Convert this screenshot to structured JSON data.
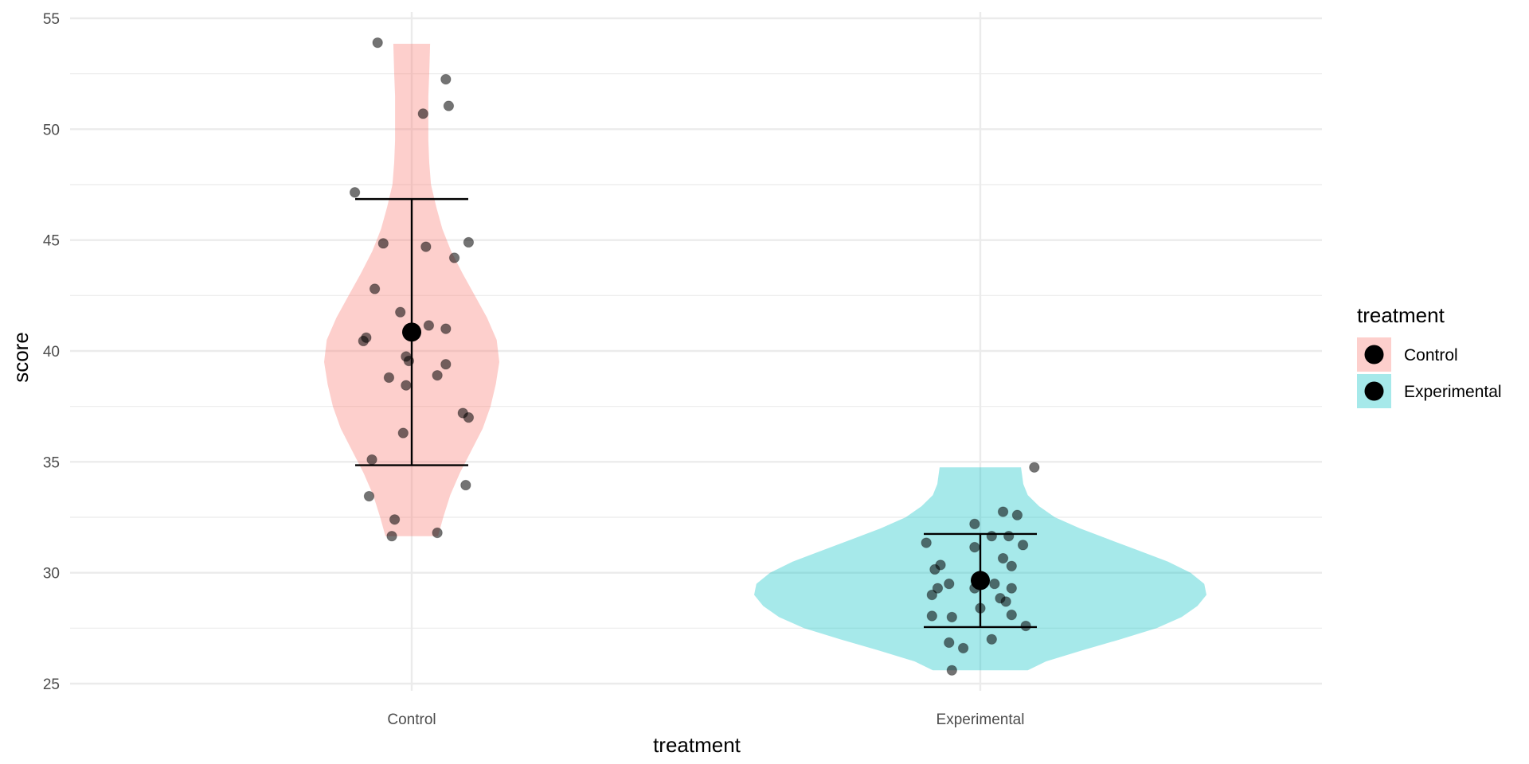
{
  "chart_data": {
    "type": "violin",
    "xlabel": "treatment",
    "ylabel": "score",
    "ylim": [
      24.5,
      55.5
    ],
    "yticks": [
      25,
      30,
      35,
      40,
      45,
      50,
      55
    ],
    "grid": true,
    "legend": {
      "title": "treatment",
      "position": "right",
      "entries": [
        {
          "label": "Control",
          "color": "#F8766D"
        },
        {
          "label": "Experimental",
          "color": "#00BFC4"
        }
      ]
    },
    "groups": [
      {
        "name": "Control",
        "color": "#F8766D",
        "mean": 40.85,
        "error_low": 34.85,
        "error_high": 46.85,
        "density": [
          [
            31.65,
            0.3
          ],
          [
            32.5,
            0.36
          ],
          [
            33.5,
            0.44
          ],
          [
            34.5,
            0.55
          ],
          [
            35.5,
            0.68
          ],
          [
            36.5,
            0.81
          ],
          [
            37.5,
            0.9
          ],
          [
            38.5,
            0.96
          ],
          [
            39.5,
            1.0
          ],
          [
            40.5,
            0.97
          ],
          [
            41.5,
            0.86
          ],
          [
            42.5,
            0.72
          ],
          [
            43.5,
            0.58
          ],
          [
            44.5,
            0.45
          ],
          [
            45.5,
            0.35
          ],
          [
            46.5,
            0.28
          ],
          [
            47.5,
            0.22
          ],
          [
            48.5,
            0.2
          ],
          [
            49.5,
            0.19
          ],
          [
            50.5,
            0.19
          ],
          [
            51.5,
            0.19
          ],
          [
            52.5,
            0.2
          ],
          [
            53.85,
            0.21
          ]
        ],
        "points": [
          [
            -0.06,
            53.9
          ],
          [
            0.06,
            52.25
          ],
          [
            0.065,
            51.05
          ],
          [
            0.02,
            50.7
          ],
          [
            -0.1,
            47.15
          ],
          [
            -0.05,
            44.85
          ],
          [
            0.025,
            44.7
          ],
          [
            0.1,
            44.9
          ],
          [
            0.075,
            44.2
          ],
          [
            -0.065,
            42.8
          ],
          [
            -0.02,
            41.75
          ],
          [
            0.03,
            41.15
          ],
          [
            0.06,
            41.0
          ],
          [
            -0.08,
            40.6
          ],
          [
            -0.085,
            40.45
          ],
          [
            -0.01,
            39.75
          ],
          [
            -0.005,
            39.55
          ],
          [
            0.06,
            39.4
          ],
          [
            0.045,
            38.9
          ],
          [
            -0.04,
            38.8
          ],
          [
            -0.01,
            38.45
          ],
          [
            0.09,
            37.2
          ],
          [
            0.1,
            37.0
          ],
          [
            -0.015,
            36.3
          ],
          [
            -0.07,
            35.1
          ],
          [
            0.095,
            33.95
          ],
          [
            -0.075,
            33.45
          ],
          [
            -0.03,
            32.4
          ],
          [
            0.045,
            31.8
          ],
          [
            -0.035,
            31.65
          ]
        ]
      },
      {
        "name": "Experimental",
        "color": "#00BFC4",
        "mean": 29.65,
        "error_low": 27.55,
        "error_high": 31.75,
        "density": [
          [
            25.6,
            0.21
          ],
          [
            26.0,
            0.29
          ],
          [
            26.5,
            0.45
          ],
          [
            27.0,
            0.62
          ],
          [
            27.5,
            0.78
          ],
          [
            28.0,
            0.89
          ],
          [
            28.5,
            0.96
          ],
          [
            29.0,
            1.0
          ],
          [
            29.5,
            0.99
          ],
          [
            30.0,
            0.93
          ],
          [
            30.5,
            0.83
          ],
          [
            31.0,
            0.7
          ],
          [
            31.5,
            0.57
          ],
          [
            32.0,
            0.44
          ],
          [
            32.5,
            0.33
          ],
          [
            33.0,
            0.26
          ],
          [
            33.5,
            0.21
          ],
          [
            34.0,
            0.19
          ],
          [
            34.75,
            0.18
          ]
        ],
        "points": [
          [
            0.095,
            34.75
          ],
          [
            0.04,
            32.75
          ],
          [
            0.065,
            32.6
          ],
          [
            -0.01,
            32.2
          ],
          [
            -0.095,
            31.35
          ],
          [
            0.02,
            31.65
          ],
          [
            0.05,
            31.65
          ],
          [
            0.075,
            31.25
          ],
          [
            -0.01,
            31.15
          ],
          [
            0.04,
            30.65
          ],
          [
            0.055,
            30.3
          ],
          [
            -0.07,
            30.35
          ],
          [
            -0.08,
            30.15
          ],
          [
            -0.055,
            29.5
          ],
          [
            -0.075,
            29.3
          ],
          [
            0.025,
            29.5
          ],
          [
            -0.01,
            29.3
          ],
          [
            0.055,
            29.3
          ],
          [
            -0.085,
            29.0
          ],
          [
            0.035,
            28.85
          ],
          [
            0.045,
            28.7
          ],
          [
            0.0,
            28.4
          ],
          [
            -0.085,
            28.05
          ],
          [
            -0.05,
            28.0
          ],
          [
            0.055,
            28.1
          ],
          [
            0.08,
            27.6
          ],
          [
            -0.055,
            26.85
          ],
          [
            -0.03,
            26.6
          ],
          [
            0.02,
            27.0
          ],
          [
            -0.05,
            25.6
          ]
        ]
      }
    ]
  }
}
